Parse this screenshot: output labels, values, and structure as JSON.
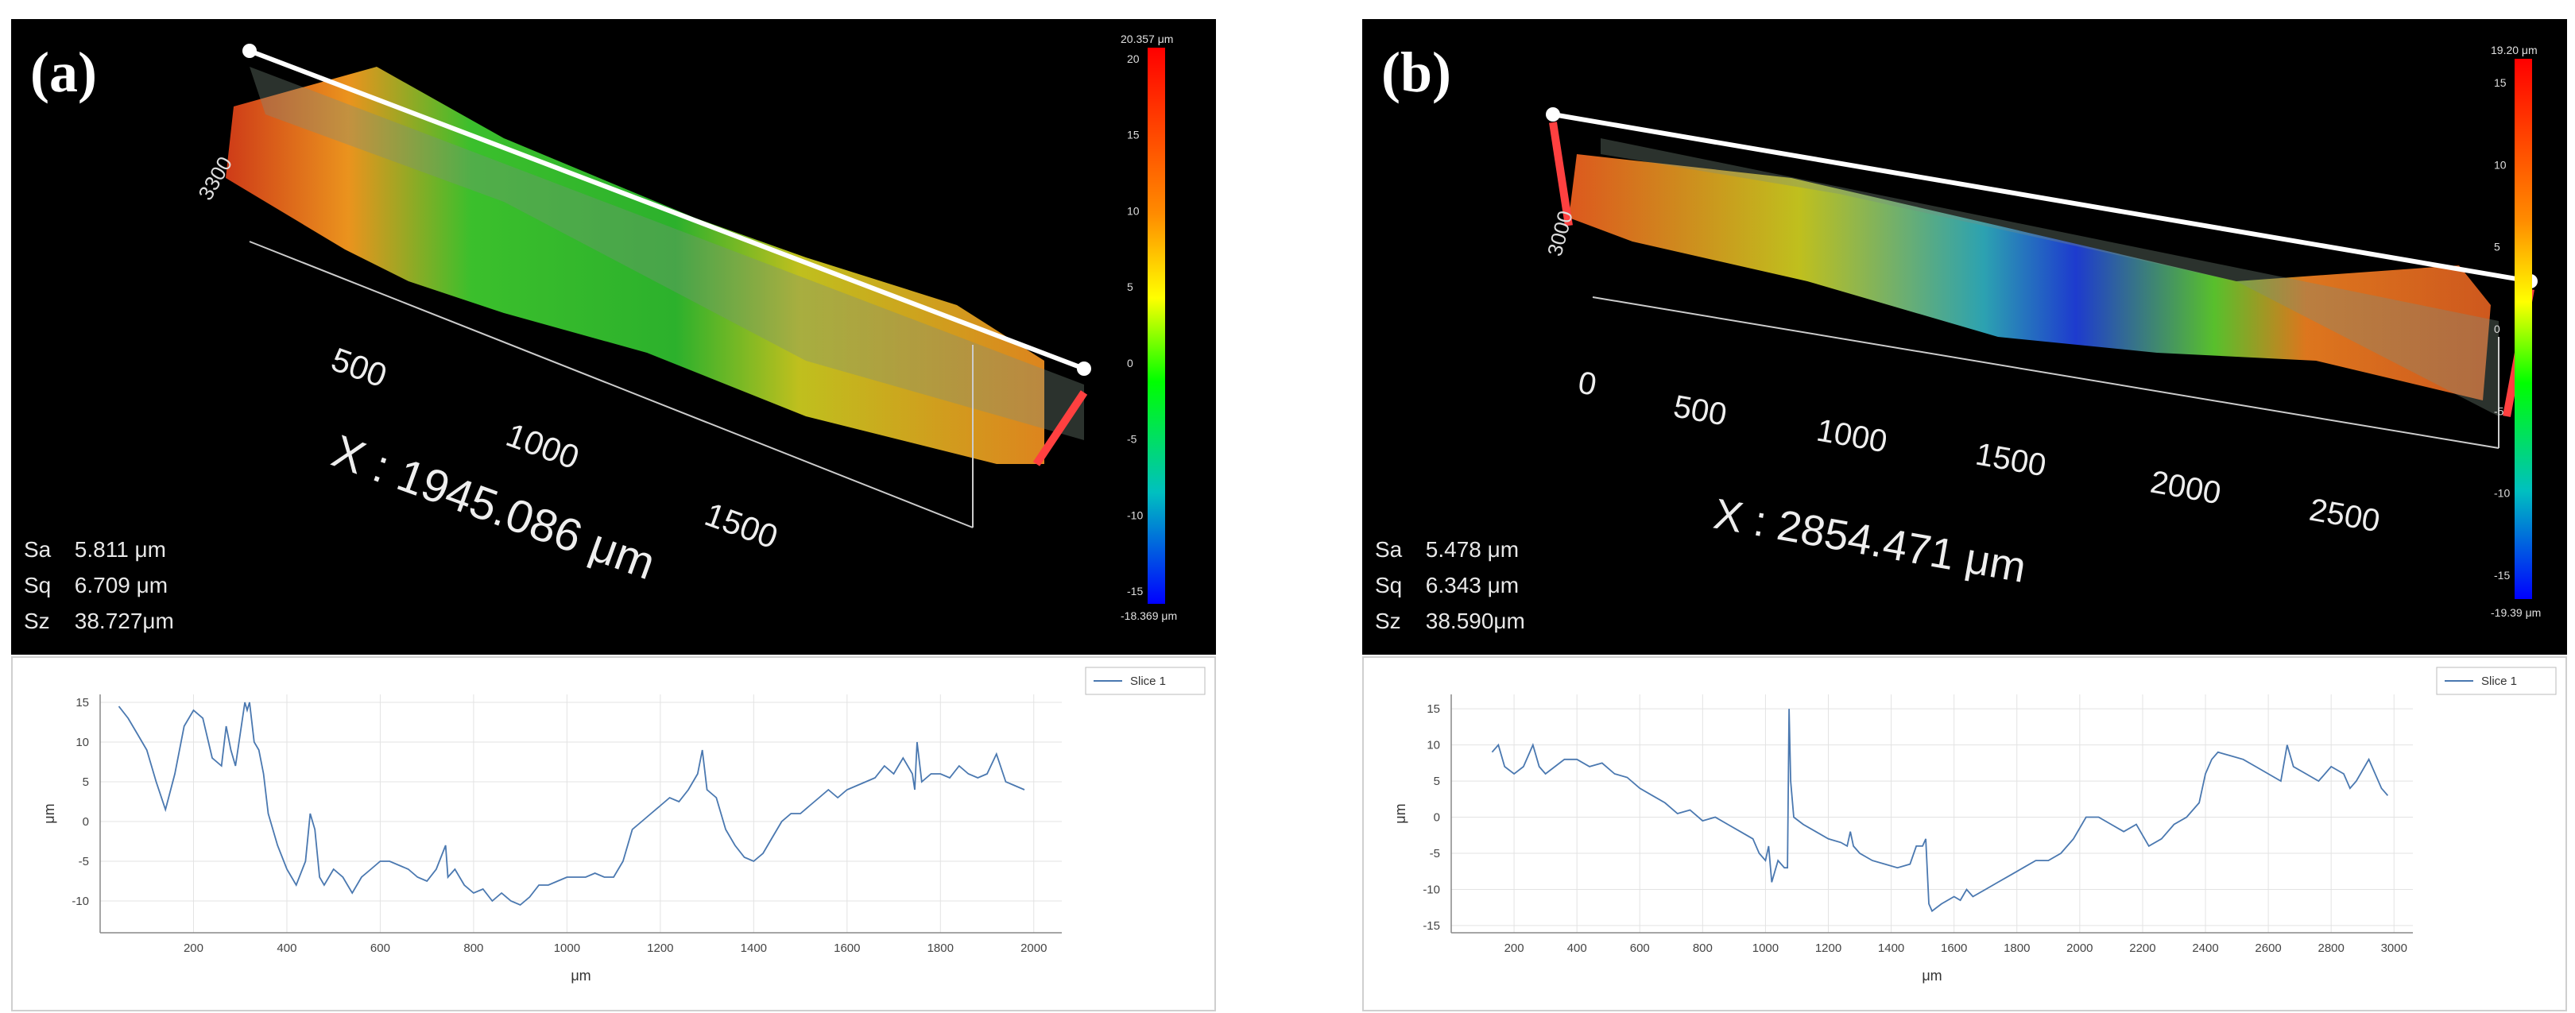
{
  "panels": [
    {
      "label": "(a)",
      "stats": {
        "sa": {
          "name": "Sa",
          "value": "5.811   μm"
        },
        "sq": {
          "name": "Sq",
          "value": "6.709   μm"
        },
        "sz": {
          "name": "Sz",
          "value": "38.727μm"
        }
      },
      "x_length_label": "X : 1945.086 μm",
      "axis3d_ticks": [
        "500",
        "1000",
        "1500"
      ],
      "axis3d_depth_label": "3300",
      "colorbar": {
        "top": "20.357 μm",
        "bottom": "-18.369 μm",
        "ticks": [
          "20",
          "15",
          "10",
          "5",
          "0",
          "-5",
          "-10",
          "-15"
        ]
      }
    },
    {
      "label": "(b)",
      "stats": {
        "sa": {
          "name": "Sa",
          "value": "5.478  μm"
        },
        "sq": {
          "name": "Sq",
          "value": "6.343  μm"
        },
        "sz": {
          "name": "Sz",
          "value": "38.590μm"
        }
      },
      "x_length_label": "X : 2854.471 μm",
      "axis3d_ticks": [
        "0",
        "500",
        "1000",
        "1500",
        "2000",
        "2500"
      ],
      "axis3d_depth_label": "3000",
      "colorbar": {
        "top": "19.20 μm",
        "bottom": "-19.39 μm",
        "ticks": [
          "15",
          "10",
          "5",
          "0",
          "-5",
          "-10",
          "-15"
        ]
      }
    }
  ],
  "chart_data": [
    {
      "type": "line",
      "title": "",
      "xlabel": "μm",
      "ylabel": "μm",
      "xlim": [
        0,
        2060
      ],
      "ylim": [
        -14,
        16
      ],
      "xticks": [
        200,
        400,
        600,
        800,
        1000,
        1200,
        1400,
        1600,
        1800,
        2000
      ],
      "yticks": [
        15,
        10,
        5,
        0,
        -5,
        -10
      ],
      "legend": "top-right",
      "series": [
        {
          "name": "Slice 1",
          "x": [
            40,
            60,
            80,
            100,
            120,
            140,
            160,
            180,
            200,
            220,
            240,
            260,
            270,
            280,
            290,
            300,
            310,
            315,
            320,
            330,
            340,
            350,
            360,
            380,
            400,
            420,
            440,
            450,
            460,
            470,
            480,
            500,
            520,
            540,
            560,
            580,
            600,
            620,
            640,
            660,
            680,
            700,
            720,
            740,
            745,
            760,
            780,
            800,
            820,
            840,
            860,
            880,
            900,
            920,
            940,
            960,
            980,
            1000,
            1020,
            1040,
            1060,
            1080,
            1100,
            1120,
            1140,
            1160,
            1180,
            1200,
            1220,
            1240,
            1260,
            1280,
            1290,
            1300,
            1320,
            1340,
            1360,
            1380,
            1400,
            1420,
            1440,
            1460,
            1480,
            1500,
            1520,
            1540,
            1560,
            1580,
            1600,
            1620,
            1640,
            1660,
            1680,
            1700,
            1720,
            1740,
            1745,
            1750,
            1760,
            1780,
            1800,
            1820,
            1840,
            1860,
            1880,
            1900,
            1920,
            1940,
            1960,
            1980
          ],
          "y": [
            14.5,
            13,
            11,
            9,
            5,
            1.5,
            6,
            12,
            14,
            13,
            8,
            7,
            12,
            9,
            7,
            11,
            15,
            14,
            15,
            10,
            9,
            6,
            1,
            -3,
            -6,
            -8,
            -5,
            1,
            -1,
            -7,
            -8,
            -6,
            -7,
            -9,
            -7,
            -6,
            -5,
            -5,
            -5.5,
            -6,
            -7,
            -7.5,
            -6,
            -3,
            -7,
            -6,
            -8,
            -9,
            -8.5,
            -10,
            -9,
            -10,
            -10.5,
            -9.5,
            -8,
            -8,
            -7.5,
            -7,
            -7,
            -7,
            -6.5,
            -7,
            -7,
            -5,
            -1,
            0,
            1,
            2,
            3,
            2.5,
            4,
            6,
            9,
            4,
            3,
            -1,
            -3,
            -4.5,
            -5,
            -4,
            -2,
            0,
            1,
            1,
            2,
            3,
            4,
            3,
            4,
            4.5,
            5,
            5.5,
            7,
            6,
            8,
            6,
            4,
            10,
            5,
            6,
            6,
            5.5,
            7,
            6,
            5.5,
            6,
            8.5,
            5,
            4.5,
            4
          ]
        }
      ]
    },
    {
      "type": "line",
      "title": "",
      "xlabel": "μm",
      "ylabel": "μm",
      "xlim": [
        0,
        3060
      ],
      "ylim": [
        -16,
        17
      ],
      "xticks": [
        200,
        400,
        600,
        800,
        1000,
        1200,
        1400,
        1600,
        1800,
        2000,
        2200,
        2400,
        2600,
        2800,
        3000
      ],
      "yticks": [
        15,
        10,
        5,
        0,
        -5,
        -10,
        -15
      ],
      "legend": "top-right",
      "series": [
        {
          "name": "Slice 1",
          "x": [
            130,
            150,
            170,
            200,
            230,
            260,
            280,
            300,
            330,
            360,
            400,
            440,
            480,
            520,
            560,
            600,
            640,
            680,
            720,
            760,
            800,
            840,
            880,
            920,
            960,
            980,
            1000,
            1010,
            1020,
            1040,
            1060,
            1070,
            1075,
            1080,
            1090,
            1120,
            1160,
            1200,
            1240,
            1260,
            1270,
            1280,
            1300,
            1340,
            1380,
            1420,
            1460,
            1480,
            1500,
            1510,
            1520,
            1530,
            1560,
            1600,
            1620,
            1640,
            1660,
            1700,
            1740,
            1780,
            1820,
            1860,
            1900,
            1940,
            1980,
            2020,
            2060,
            2100,
            2140,
            2180,
            2220,
            2260,
            2300,
            2340,
            2380,
            2400,
            2420,
            2440,
            2480,
            2520,
            2560,
            2600,
            2640,
            2660,
            2680,
            2720,
            2760,
            2800,
            2840,
            2860,
            2880,
            2920,
            2960,
            2980
          ],
          "y": [
            9,
            10,
            7,
            6,
            7,
            10,
            7,
            6,
            7,
            8,
            8,
            7,
            7.5,
            6,
            5.5,
            4,
            3,
            2,
            0.5,
            1,
            -0.5,
            0,
            -1,
            -2,
            -3,
            -5,
            -6,
            -4,
            -9,
            -6,
            -7,
            -7,
            15,
            5,
            0,
            -1,
            -2,
            -3,
            -3.5,
            -4,
            -2,
            -4,
            -5,
            -6,
            -6.5,
            -7,
            -6.5,
            -4,
            -4,
            -3,
            -12,
            -13,
            -12,
            -11,
            -11.5,
            -10,
            -11,
            -10,
            -9,
            -8,
            -7,
            -6,
            -6,
            -5,
            -3,
            0,
            0,
            -1,
            -2,
            -1,
            -4,
            -3,
            -1,
            0,
            2,
            6,
            8,
            9,
            8.5,
            8,
            7,
            6,
            5,
            10,
            7,
            6,
            5,
            7,
            6,
            4,
            5,
            8,
            4,
            3
          ]
        }
      ]
    }
  ]
}
